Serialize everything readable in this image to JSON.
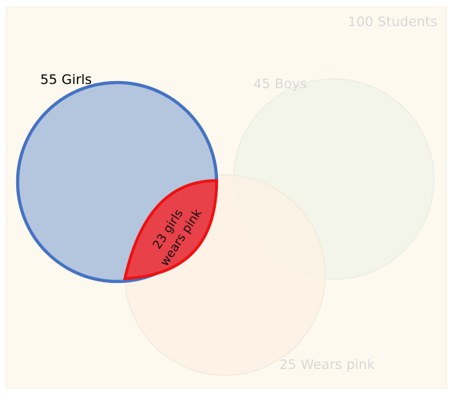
{
  "universe": {
    "label": "100 Students"
  },
  "sets": {
    "girls": {
      "label": "55 Girls"
    },
    "boys": {
      "label": "45 Boys"
    },
    "pink": {
      "label": "25 Wears pink"
    }
  },
  "intersection": {
    "line1": "23 girls",
    "line2": "wears pink"
  },
  "colors": {
    "background": "#fdf9ee",
    "girls_fill": "#b4c5de",
    "girls_stroke": "#4472c4",
    "highlight_fill": "#e8414a",
    "highlight_stroke": "#ee1111",
    "faded_text": "#d8d8d8"
  }
}
